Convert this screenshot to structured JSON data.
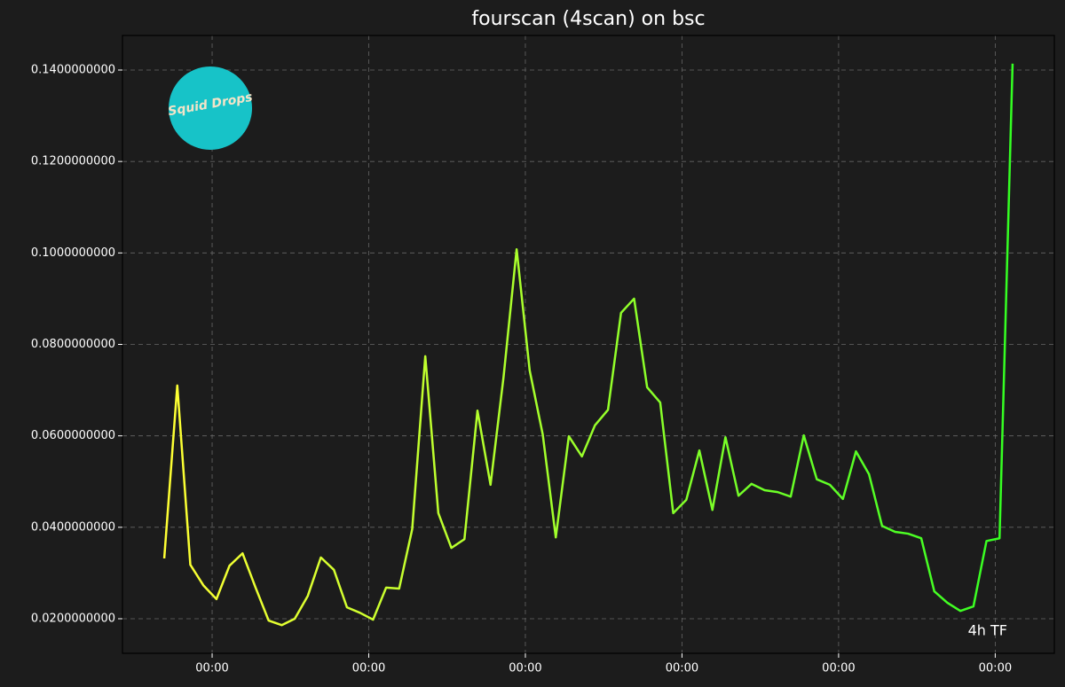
{
  "chart_data": {
    "type": "line",
    "title": "fourscan (4scan) on bsc",
    "annotation": "4h TF",
    "logo": "Squid Drops",
    "x": [
      0,
      1,
      2,
      3,
      4,
      5,
      6,
      7,
      8,
      9,
      10,
      11,
      12,
      13,
      14,
      15,
      16,
      17,
      18,
      19,
      20,
      21,
      22,
      23,
      24,
      25,
      26,
      27,
      28,
      29,
      30,
      31,
      32,
      33,
      34,
      35,
      36,
      37,
      38,
      39,
      40,
      41,
      42,
      43,
      44,
      45,
      46,
      47,
      48,
      49,
      50,
      51,
      52,
      53,
      54,
      55,
      56,
      57,
      58,
      59,
      60,
      61,
      62,
      63,
      64,
      65
    ],
    "values": [
      0.0332,
      0.071,
      0.0318,
      0.0273,
      0.0243,
      0.0316,
      0.0343,
      0.0268,
      0.0196,
      0.0186,
      0.02,
      0.025,
      0.0334,
      0.0307,
      0.0225,
      0.0213,
      0.0198,
      0.0268,
      0.0266,
      0.0396,
      0.0774,
      0.0431,
      0.0355,
      0.0374,
      0.0655,
      0.0493,
      0.0729,
      0.1008,
      0.0743,
      0.0603,
      0.0378,
      0.0599,
      0.0555,
      0.0623,
      0.0657,
      0.0869,
      0.09,
      0.0706,
      0.0673,
      0.0431,
      0.046,
      0.0568,
      0.0438,
      0.0597,
      0.0469,
      0.0495,
      0.0481,
      0.0477,
      0.0467,
      0.0601,
      0.0505,
      0.0493,
      0.0462,
      0.0566,
      0.0516,
      0.0403,
      0.039,
      0.0386,
      0.0376,
      0.026,
      0.0235,
      0.0217,
      0.0227,
      0.037,
      0.0376,
      0.1414
    ],
    "color_start": "#ffff33",
    "color_end": "#33ff22",
    "xlim": [
      -3.2,
      68.2
    ],
    "xticks": [
      {
        "value": 3.67,
        "label": "00:00"
      },
      {
        "value": 15.67,
        "label": "00:00"
      },
      {
        "value": 27.67,
        "label": "00:00"
      },
      {
        "value": 39.67,
        "label": "00:00"
      },
      {
        "value": 51.67,
        "label": "00:00"
      },
      {
        "value": 63.67,
        "label": "00:00"
      }
    ],
    "ylim": [
      0.01244,
      0.14756
    ],
    "yticks": [
      {
        "value": 0.02,
        "label": "0.0200000000"
      },
      {
        "value": 0.04,
        "label": "0.0400000000"
      },
      {
        "value": 0.06,
        "label": "0.0600000000"
      },
      {
        "value": 0.08,
        "label": "0.0800000000"
      },
      {
        "value": 0.1,
        "label": "0.1000000000"
      },
      {
        "value": 0.12,
        "label": "0.1200000000"
      },
      {
        "value": 0.14,
        "label": "0.1400000000"
      }
    ],
    "grid": true
  }
}
